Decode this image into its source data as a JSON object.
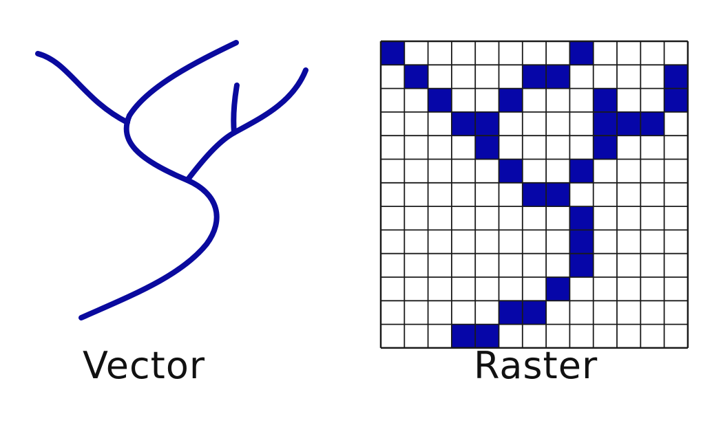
{
  "labels": {
    "vector": "Vector",
    "raster": "Raster"
  },
  "colors": {
    "stroke": "#0a0a9e",
    "fill": "#0606a8",
    "grid": "#1a1a1a",
    "background": "#ffffff"
  },
  "raster": {
    "columns": 13,
    "rows": 13,
    "filled_cells": [
      [
        0,
        0
      ],
      [
        8,
        0
      ],
      [
        1,
        1
      ],
      [
        6,
        1
      ],
      [
        7,
        1
      ],
      [
        12,
        1
      ],
      [
        2,
        2
      ],
      [
        5,
        2
      ],
      [
        9,
        2
      ],
      [
        12,
        2
      ],
      [
        3,
        3
      ],
      [
        4,
        3
      ],
      [
        9,
        3
      ],
      [
        10,
        3
      ],
      [
        11,
        3
      ],
      [
        4,
        4
      ],
      [
        9,
        4
      ],
      [
        5,
        5
      ],
      [
        8,
        5
      ],
      [
        6,
        6
      ],
      [
        7,
        6
      ],
      [
        8,
        7
      ],
      [
        8,
        8
      ],
      [
        8,
        9
      ],
      [
        7,
        10
      ],
      [
        5,
        11
      ],
      [
        6,
        11
      ],
      [
        3,
        12
      ],
      [
        4,
        12
      ]
    ]
  }
}
